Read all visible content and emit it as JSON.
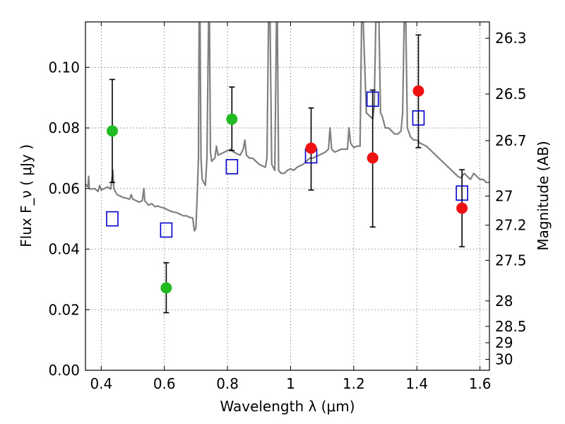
{
  "chart_data": {
    "type": "scatter",
    "xlabel": "Wavelength  λ (μm)",
    "ylabel": "Flux  F_ν  ( μJy )",
    "ylabel_right": "Magnitude (AB)",
    "xlim": [
      0.35,
      1.63
    ],
    "ylim": [
      0.0,
      0.115
    ],
    "grid": true,
    "x_ticks": [
      {
        "value": 0.4,
        "label": "0.4"
      },
      {
        "value": 0.6,
        "label": "0.6"
      },
      {
        "value": 0.8,
        "label": "0.8"
      },
      {
        "value": 1.0,
        "label": "1"
      },
      {
        "value": 1.2,
        "label": "1.2"
      },
      {
        "value": 1.4,
        "label": "1.4"
      },
      {
        "value": 1.6,
        "label": "1.6"
      }
    ],
    "y_ticks": [
      {
        "value": 0.0,
        "label": "0.00"
      },
      {
        "value": 0.02,
        "label": "0.02"
      },
      {
        "value": 0.04,
        "label": "0.04"
      },
      {
        "value": 0.06,
        "label": "0.06"
      },
      {
        "value": 0.08,
        "label": "0.08"
      },
      {
        "value": 0.1,
        "label": "0.10"
      }
    ],
    "right_ticks": [
      {
        "flux": 0.1096,
        "label": "26.3"
      },
      {
        "flux": 0.0912,
        "label": "26.5"
      },
      {
        "flux": 0.0758,
        "label": "26.7"
      },
      {
        "flux": 0.0575,
        "label": "27"
      },
      {
        "flux": 0.0479,
        "label": "27.2"
      },
      {
        "flux": 0.0363,
        "label": "27.5"
      },
      {
        "flux": 0.0229,
        "label": "28"
      },
      {
        "flux": 0.0145,
        "label": "28.5"
      },
      {
        "flux": 0.0091,
        "label": "29"
      },
      {
        "flux": 0.0036,
        "label": "30"
      }
    ],
    "series": [
      {
        "marker": "circle",
        "color": "#22bb22",
        "points": [
          {
            "x": 0.435,
            "y": 0.079,
            "yerr_low": 0.062,
            "yerr_high": 0.096
          },
          {
            "x": 0.606,
            "y": 0.0272,
            "yerr_low": 0.019,
            "yerr_high": 0.0355
          },
          {
            "x": 0.814,
            "y": 0.0829,
            "yerr_low": 0.0725,
            "yerr_high": 0.0935
          }
        ]
      },
      {
        "marker": "circle",
        "color": "#ee1111",
        "points": [
          {
            "x": 1.065,
            "y": 0.0733,
            "yerr_low": 0.0595,
            "yerr_high": 0.0866
          },
          {
            "x": 1.26,
            "y": 0.0701,
            "yerr_low": 0.0473,
            "yerr_high": 0.0925
          },
          {
            "x": 1.405,
            "y": 0.0922,
            "yerr_low": 0.0735,
            "yerr_high": 0.1107
          },
          {
            "x": 1.543,
            "y": 0.0535,
            "yerr_low": 0.0408,
            "yerr_high": 0.0662
          }
        ]
      },
      {
        "marker": "open-square",
        "color": "#0000cc",
        "points": [
          {
            "x": 0.435,
            "y": 0.05
          },
          {
            "x": 0.606,
            "y": 0.0463
          },
          {
            "x": 0.814,
            "y": 0.0672
          },
          {
            "x": 1.065,
            "y": 0.0708
          },
          {
            "x": 1.26,
            "y": 0.0895
          },
          {
            "x": 1.405,
            "y": 0.0833
          },
          {
            "x": 1.543,
            "y": 0.0585
          }
        ]
      },
      {
        "marker": "line",
        "color": "#808080",
        "spectrum": [
          [
            0.35,
            0.0615
          ],
          [
            0.358,
            0.0605
          ],
          [
            0.36,
            0.064
          ],
          [
            0.362,
            0.06
          ],
          [
            0.37,
            0.0598
          ],
          [
            0.38,
            0.06
          ],
          [
            0.39,
            0.059
          ],
          [
            0.395,
            0.061
          ],
          [
            0.4,
            0.0595
          ],
          [
            0.41,
            0.06
          ],
          [
            0.42,
            0.0605
          ],
          [
            0.43,
            0.0598
          ],
          [
            0.435,
            0.064
          ],
          [
            0.437,
            0.066
          ],
          [
            0.44,
            0.06
          ],
          [
            0.45,
            0.058
          ],
          [
            0.46,
            0.0575
          ],
          [
            0.47,
            0.057
          ],
          [
            0.48,
            0.0568
          ],
          [
            0.49,
            0.0565
          ],
          [
            0.495,
            0.058
          ],
          [
            0.5,
            0.0565
          ],
          [
            0.51,
            0.056
          ],
          [
            0.52,
            0.0555
          ],
          [
            0.53,
            0.056
          ],
          [
            0.535,
            0.06
          ],
          [
            0.538,
            0.056
          ],
          [
            0.55,
            0.0545
          ],
          [
            0.56,
            0.055
          ],
          [
            0.57,
            0.054
          ],
          [
            0.58,
            0.0542
          ],
          [
            0.59,
            0.0538
          ],
          [
            0.6,
            0.0535
          ],
          [
            0.61,
            0.053
          ],
          [
            0.62,
            0.0525
          ],
          [
            0.63,
            0.0522
          ],
          [
            0.64,
            0.052
          ],
          [
            0.65,
            0.0515
          ],
          [
            0.66,
            0.051
          ],
          [
            0.67,
            0.051
          ],
          [
            0.68,
            0.0505
          ],
          [
            0.69,
            0.0503
          ],
          [
            0.695,
            0.046
          ],
          [
            0.7,
            0.047
          ],
          [
            0.705,
            0.06
          ],
          [
            0.708,
            0.07
          ],
          [
            0.71,
            0.115
          ],
          [
            0.713,
            0.115
          ],
          [
            0.716,
            0.07
          ],
          [
            0.72,
            0.063
          ],
          [
            0.73,
            0.061
          ],
          [
            0.735,
            0.07
          ],
          [
            0.74,
            0.115
          ],
          [
            0.743,
            0.115
          ],
          [
            0.746,
            0.072
          ],
          [
            0.75,
            0.069
          ],
          [
            0.76,
            0.07
          ],
          [
            0.765,
            0.074
          ],
          [
            0.77,
            0.071
          ],
          [
            0.78,
            0.0715
          ],
          [
            0.79,
            0.072
          ],
          [
            0.8,
            0.0725
          ],
          [
            0.81,
            0.073
          ],
          [
            0.82,
            0.072
          ],
          [
            0.83,
            0.0715
          ],
          [
            0.84,
            0.071
          ],
          [
            0.85,
            0.073
          ],
          [
            0.855,
            0.076
          ],
          [
            0.86,
            0.071
          ],
          [
            0.87,
            0.07
          ],
          [
            0.88,
            0.07
          ],
          [
            0.89,
            0.069
          ],
          [
            0.9,
            0.068
          ],
          [
            0.91,
            0.0675
          ],
          [
            0.92,
            0.067
          ],
          [
            0.925,
            0.07
          ],
          [
            0.93,
            0.115
          ],
          [
            0.935,
            0.115
          ],
          [
            0.94,
            0.068
          ],
          [
            0.95,
            0.066
          ],
          [
            0.955,
            0.115
          ],
          [
            0.958,
            0.115
          ],
          [
            0.962,
            0.066
          ],
          [
            0.97,
            0.065
          ],
          [
            0.98,
            0.065
          ],
          [
            0.99,
            0.066
          ],
          [
            1.0,
            0.0665
          ],
          [
            1.01,
            0.066
          ],
          [
            1.02,
            0.067
          ],
          [
            1.03,
            0.0675
          ],
          [
            1.04,
            0.068
          ],
          [
            1.05,
            0.069
          ],
          [
            1.06,
            0.07
          ],
          [
            1.07,
            0.07
          ],
          [
            1.08,
            0.0705
          ],
          [
            1.09,
            0.071
          ],
          [
            1.1,
            0.0715
          ],
          [
            1.11,
            0.072
          ],
          [
            1.12,
            0.073
          ],
          [
            1.125,
            0.08
          ],
          [
            1.13,
            0.073
          ],
          [
            1.14,
            0.072
          ],
          [
            1.15,
            0.0725
          ],
          [
            1.16,
            0.073
          ],
          [
            1.17,
            0.073
          ],
          [
            1.18,
            0.073
          ],
          [
            1.185,
            0.08
          ],
          [
            1.19,
            0.075
          ],
          [
            1.2,
            0.0735
          ],
          [
            1.21,
            0.074
          ],
          [
            1.22,
            0.074
          ],
          [
            1.225,
            0.115
          ],
          [
            1.23,
            0.115
          ],
          [
            1.24,
            0.085
          ],
          [
            1.25,
            0.084
          ],
          [
            1.26,
            0.083
          ],
          [
            1.265,
            0.087
          ],
          [
            1.27,
            0.115
          ],
          [
            1.28,
            0.115
          ],
          [
            1.285,
            0.085
          ],
          [
            1.29,
            0.084
          ],
          [
            1.3,
            0.08
          ],
          [
            1.31,
            0.08
          ],
          [
            1.32,
            0.079
          ],
          [
            1.33,
            0.078
          ],
          [
            1.34,
            0.078
          ],
          [
            1.35,
            0.079
          ],
          [
            1.355,
            0.085
          ],
          [
            1.36,
            0.115
          ],
          [
            1.365,
            0.115
          ],
          [
            1.37,
            0.08
          ],
          [
            1.38,
            0.077
          ],
          [
            1.39,
            0.076
          ],
          [
            1.4,
            0.076
          ],
          [
            1.41,
            0.075
          ],
          [
            1.42,
            0.0745
          ],
          [
            1.43,
            0.074
          ],
          [
            1.44,
            0.073
          ],
          [
            1.45,
            0.072
          ],
          [
            1.46,
            0.071
          ],
          [
            1.47,
            0.07
          ],
          [
            1.48,
            0.069
          ],
          [
            1.49,
            0.068
          ],
          [
            1.5,
            0.067
          ],
          [
            1.51,
            0.066
          ],
          [
            1.52,
            0.065
          ],
          [
            1.53,
            0.064
          ],
          [
            1.54,
            0.0635
          ],
          [
            1.55,
            0.065
          ],
          [
            1.56,
            0.064
          ],
          [
            1.57,
            0.063
          ],
          [
            1.58,
            0.065
          ],
          [
            1.59,
            0.064
          ],
          [
            1.6,
            0.063
          ],
          [
            1.61,
            0.063
          ],
          [
            1.62,
            0.062
          ],
          [
            1.63,
            0.062
          ]
        ]
      }
    ]
  }
}
